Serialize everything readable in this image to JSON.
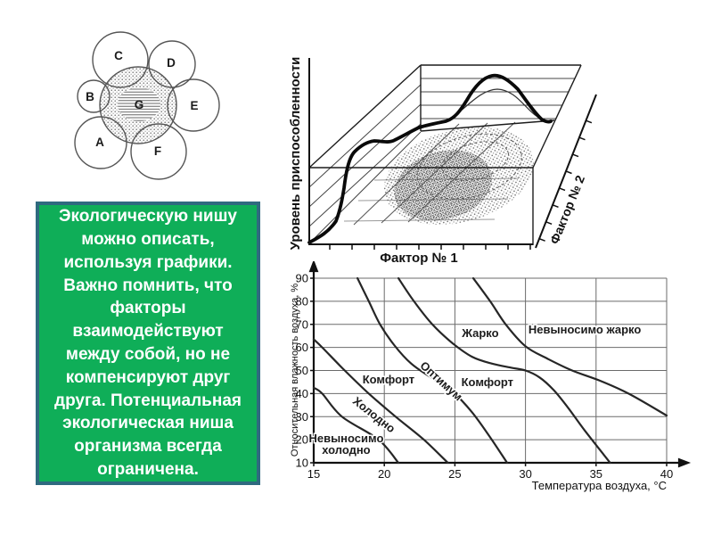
{
  "page": {
    "background": "#ffffff"
  },
  "venn_diagram": {
    "labels": {
      "a": "A",
      "b": "B",
      "c": "C",
      "d": "D",
      "e": "E",
      "f": "F",
      "g": "G"
    }
  },
  "text_panel": {
    "text": "Экологическую нишу\nможно описать,\nиспользуя графики.\nВажно помнить, что\nфакторы\nвзаимодействуют\nмежду собой, но не\nкомпенсируют друг\nдруга. Потенциальная\nэкологическая ниша\nорганизма всегда\nограничена.",
    "colors": {
      "background": "#0fae58",
      "border": "#2f6a7f",
      "text": "#ffffff"
    }
  },
  "fig3d": {
    "y_axis_label": "Уровень приспособленности",
    "x_axis_label": "Фактор № 1",
    "z_axis_label": "Фактор № 2"
  },
  "chart_data": {
    "type": "line",
    "title": "",
    "xlabel": "Температура воздуха, °C",
    "ylabel": "Относительная влажность воздуха, %",
    "xlim": [
      15,
      40
    ],
    "ylim": [
      10,
      90
    ],
    "xticks": [
      15,
      20,
      25,
      30,
      35,
      40
    ],
    "yticks": [
      10,
      20,
      30,
      40,
      50,
      60,
      70,
      80,
      90
    ],
    "grid": true,
    "legend": "none",
    "series": [
      {
        "name": "граница невыносимо холодно",
        "points": [
          [
            15,
            42.5
          ],
          [
            15.6,
            40
          ],
          [
            17,
            30
          ],
          [
            19.6,
            20
          ],
          [
            21,
            10
          ]
        ]
      },
      {
        "name": "граница холодно",
        "points": [
          [
            15,
            63.5
          ],
          [
            15.6,
            60
          ],
          [
            17.2,
            50
          ],
          [
            18.9,
            40
          ],
          [
            20.8,
            30
          ],
          [
            22.8,
            20
          ],
          [
            24.5,
            10
          ]
        ]
      },
      {
        "name": "оптимум",
        "points": [
          [
            18.1,
            90
          ],
          [
            18.9,
            80
          ],
          [
            19.7,
            70
          ],
          [
            20.7,
            61
          ],
          [
            21.9,
            53
          ],
          [
            23.3,
            47
          ],
          [
            24.8,
            41
          ],
          [
            26.2,
            32
          ],
          [
            27.5,
            21
          ],
          [
            28.7,
            10
          ]
        ]
      },
      {
        "name": "граница жарко",
        "points": [
          [
            21,
            90
          ],
          [
            22.1,
            80
          ],
          [
            23.4,
            70
          ],
          [
            24.8,
            62
          ],
          [
            26.2,
            56
          ],
          [
            27.6,
            53
          ],
          [
            29,
            51.2
          ],
          [
            30,
            50
          ],
          [
            31,
            47
          ],
          [
            32,
            41.5
          ],
          [
            33,
            34
          ],
          [
            34.2,
            24
          ],
          [
            36,
            10
          ]
        ]
      },
      {
        "name": "граница невыносимо жарко",
        "points": [
          [
            26.3,
            90
          ],
          [
            27.5,
            80
          ],
          [
            28.6,
            70
          ],
          [
            30,
            60.5
          ],
          [
            31.6,
            55
          ],
          [
            33.3,
            50
          ],
          [
            35.3,
            45.5
          ],
          [
            37.3,
            40
          ],
          [
            40,
            30.5
          ]
        ]
      }
    ],
    "zone_labels": [
      {
        "text": "Невыносимо\nхолодно",
        "x": 17.3,
        "y": 20.5,
        "rotate": 0
      },
      {
        "text": "Холодно",
        "x": 19.1,
        "y": 31,
        "rotate": 38
      },
      {
        "text": "Комфорт",
        "x": 20.3,
        "y": 46,
        "rotate": 0
      },
      {
        "text": "Оптимум",
        "x": 23.85,
        "y": 45.7,
        "rotate": 42
      },
      {
        "text": "Комфорт",
        "x": 27.3,
        "y": 44.7,
        "rotate": 0
      },
      {
        "text": "Жарко",
        "x": 26.8,
        "y": 66,
        "rotate": 0
      },
      {
        "text": "Невыносимо жарко",
        "x": 34.2,
        "y": 67.5,
        "rotate": 0
      }
    ]
  }
}
